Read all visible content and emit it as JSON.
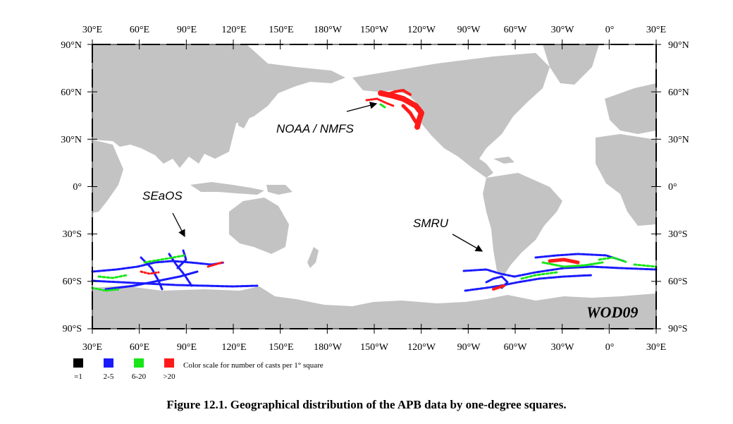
{
  "map": {
    "top_lon_labels": [
      "30°E",
      "60°E",
      "90°E",
      "120°E",
      "150°E",
      "180°W",
      "150°W",
      "120°W",
      "90°W",
      "60°W",
      "30°W",
      "0°",
      "30°E"
    ],
    "bottom_lon_labels": [
      "30°E",
      "60°E",
      "90°E",
      "120°E",
      "150°E",
      "180°W",
      "150°W",
      "120°W",
      "90°W",
      "60°W",
      "30°W",
      "0°",
      "30°E"
    ],
    "left_lat_labels": [
      "90°N",
      "60°N",
      "30°N",
      "0°",
      "30°S",
      "60°S",
      "90°S"
    ],
    "right_lat_labels": [
      "90°N",
      "60°N",
      "30°N",
      "0°",
      "30°S",
      "60°S",
      "90°S"
    ],
    "annotations": {
      "noaa": "NOAA / NMFS",
      "seaos": "SEaOS",
      "smru": "SMRU",
      "watermark": "WOD09"
    },
    "colors": {
      "land": "#c3c3c3",
      "ocean": "#ffffff",
      "cast_1": "#000000",
      "cast_2_5": "#1a1aff",
      "cast_6_20": "#19e619",
      "cast_gt20": "#ff1a1a"
    }
  },
  "legend": {
    "swatches": [
      {
        "label": "=1",
        "color": "#000000"
      },
      {
        "label": "2-5",
        "color": "#1a1aff"
      },
      {
        "label": "6-20",
        "color": "#19e619"
      },
      {
        "label": ">20",
        "color": "#ff1a1a"
      }
    ],
    "text": "Color scale for number of casts per 1° square"
  },
  "caption": "Figure 12.1. Geographical distribution of the APB data by one-degree squares."
}
